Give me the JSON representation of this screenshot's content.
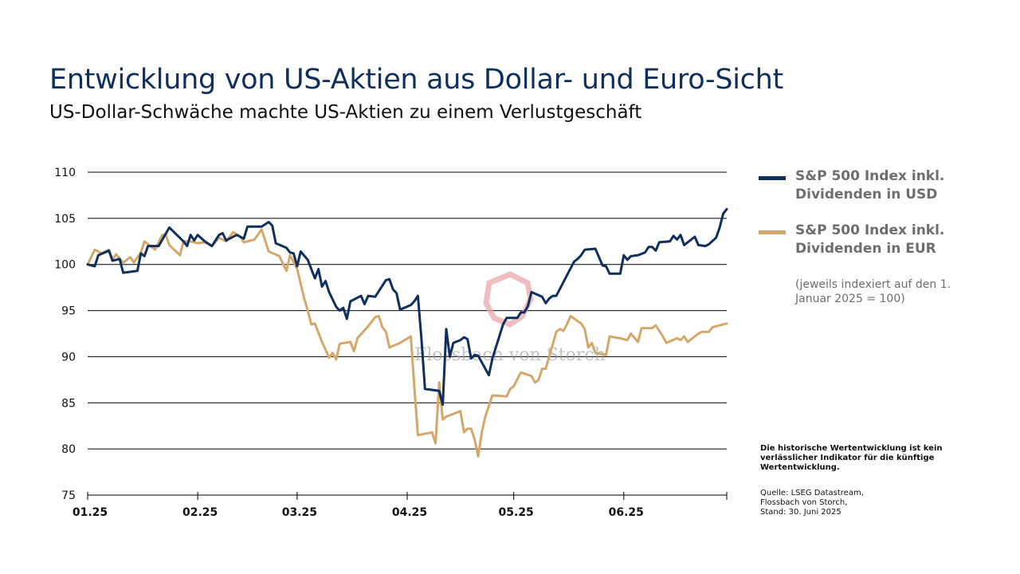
{
  "title": "Entwicklung von US-Aktien aus Dollar- und Euro-Sicht",
  "subtitle": "US-Dollar-Schwäche machte US-Aktien zu einem Verlustgeschäft",
  "legend": {
    "usd_label": "S&P 500 Index inkl. Dividenden in USD",
    "eur_label": "S&P 500 Index inkl. Dividenden in EUR",
    "note": "(jeweils indexiert auf den 1. Januar 2025 = 100)"
  },
  "disclaimer": "Die historische Wertentwicklung ist kein verlässlicher Indikator für die künftige Wertentwicklung.",
  "source": {
    "line1": "Quelle: LSEG Datastream,",
    "line2": "Flossbach von Storch,",
    "line3": "Stand: 30. Juni 2025"
  },
  "watermark": "Flossbach von Storch",
  "colors": {
    "usd": "#0f2f5e",
    "eur": "#d4a76a",
    "title": "#0f2f5e",
    "legend_text": "#6e6e6e",
    "grid": "#000000",
    "watermark_logo": "#e8a8ac"
  },
  "chart_data": {
    "type": "line",
    "x_start": "2025-01-01",
    "x_end": "2025-06-30",
    "ylim": [
      75,
      110
    ],
    "yticks": [
      75,
      80,
      85,
      90,
      95,
      100,
      105,
      110
    ],
    "xticks": [
      {
        "label": "01.25",
        "date": "2025-01-01"
      },
      {
        "label": "02.25",
        "date": "2025-02-01"
      },
      {
        "label": "03.25",
        "date": "2025-03-01"
      },
      {
        "label": "04.25",
        "date": "2025-04-01"
      },
      {
        "label": "05.25",
        "date": "2025-05-01"
      },
      {
        "label": "06.25",
        "date": "2025-06-01"
      }
    ],
    "grid": true,
    "legend_position": "right",
    "series": [
      {
        "name": "S&P 500 Index inkl. Dividenden in USD",
        "color": "#0f2f5e",
        "points": [
          [
            "2025-01-01",
            100.0
          ],
          [
            "2025-01-03",
            99.8
          ],
          [
            "2025-01-04",
            101.0
          ],
          [
            "2025-01-07",
            101.5
          ],
          [
            "2025-01-08",
            100.4
          ],
          [
            "2025-01-10",
            100.6
          ],
          [
            "2025-01-11",
            99.1
          ],
          [
            "2025-01-15",
            99.3
          ],
          [
            "2025-01-16",
            101.2
          ],
          [
            "2025-01-17",
            100.9
          ],
          [
            "2025-01-18",
            102.0
          ],
          [
            "2025-01-21",
            102.0
          ],
          [
            "2025-01-24",
            104.0
          ],
          [
            "2025-01-28",
            102.5
          ],
          [
            "2025-01-29",
            102.0
          ],
          [
            "2025-01-30",
            103.2
          ],
          [
            "2025-01-31",
            102.6
          ],
          [
            "2025-02-01",
            103.2
          ],
          [
            "2025-02-03",
            102.5
          ],
          [
            "2025-02-05",
            102.0
          ],
          [
            "2025-02-07",
            103.2
          ],
          [
            "2025-02-08",
            103.4
          ],
          [
            "2025-02-09",
            102.6
          ],
          [
            "2025-02-12",
            103.2
          ],
          [
            "2025-02-14",
            102.8
          ],
          [
            "2025-02-15",
            104.1
          ],
          [
            "2025-02-19",
            104.1
          ],
          [
            "2025-02-21",
            104.6
          ],
          [
            "2025-02-22",
            104.2
          ],
          [
            "2025-02-23",
            102.3
          ],
          [
            "2025-02-26",
            101.8
          ],
          [
            "2025-02-27",
            101.3
          ],
          [
            "2025-02-28",
            101.2
          ],
          [
            "2025-03-01",
            99.8
          ],
          [
            "2025-03-02",
            101.4
          ],
          [
            "2025-03-04",
            100.5
          ],
          [
            "2025-03-06",
            98.5
          ],
          [
            "2025-03-07",
            99.5
          ],
          [
            "2025-03-08",
            97.6
          ],
          [
            "2025-03-09",
            98.2
          ],
          [
            "2025-03-10",
            97.0
          ],
          [
            "2025-03-12",
            95.4
          ],
          [
            "2025-03-13",
            95.0
          ],
          [
            "2025-03-14",
            95.3
          ],
          [
            "2025-03-15",
            94.1
          ],
          [
            "2025-03-16",
            96.0
          ],
          [
            "2025-03-19",
            96.6
          ],
          [
            "2025-03-20",
            95.7
          ],
          [
            "2025-03-21",
            96.6
          ],
          [
            "2025-03-23",
            96.5
          ],
          [
            "2025-03-26",
            98.3
          ],
          [
            "2025-03-27",
            98.4
          ],
          [
            "2025-03-28",
            97.3
          ],
          [
            "2025-03-29",
            96.9
          ],
          [
            "2025-03-30",
            95.1
          ],
          [
            "2025-04-02",
            95.6
          ],
          [
            "2025-04-03",
            96.0
          ],
          [
            "2025-04-04",
            96.6
          ],
          [
            "2025-04-05",
            92.0
          ],
          [
            "2025-04-06",
            86.5
          ],
          [
            "2025-04-10",
            86.3
          ],
          [
            "2025-04-11",
            84.8
          ],
          [
            "2025-04-12",
            93.0
          ],
          [
            "2025-04-13",
            90.0
          ],
          [
            "2025-04-14",
            91.5
          ],
          [
            "2025-04-16",
            91.8
          ],
          [
            "2025-04-17",
            92.1
          ],
          [
            "2025-04-18",
            91.9
          ],
          [
            "2025-04-19",
            89.8
          ],
          [
            "2025-04-20",
            90.2
          ],
          [
            "2025-04-21",
            90.1
          ],
          [
            "2025-04-24",
            88.0
          ],
          [
            "2025-04-25",
            89.8
          ],
          [
            "2025-04-28",
            93.5
          ],
          [
            "2025-04-29",
            94.2
          ],
          [
            "2025-05-02",
            94.2
          ],
          [
            "2025-05-03",
            94.8
          ],
          [
            "2025-05-04",
            94.8
          ],
          [
            "2025-05-05",
            95.5
          ],
          [
            "2025-05-06",
            97.0
          ],
          [
            "2025-05-09",
            96.5
          ],
          [
            "2025-05-10",
            95.8
          ],
          [
            "2025-05-11",
            96.3
          ],
          [
            "2025-05-12",
            96.6
          ],
          [
            "2025-05-13",
            96.6
          ],
          [
            "2025-05-18",
            100.3
          ],
          [
            "2025-05-19",
            100.6
          ],
          [
            "2025-05-20",
            101.0
          ],
          [
            "2025-05-21",
            101.6
          ],
          [
            "2025-05-24",
            101.7
          ],
          [
            "2025-05-26",
            99.9
          ],
          [
            "2025-05-27",
            99.8
          ],
          [
            "2025-05-28",
            99.0
          ],
          [
            "2025-05-31",
            99.0
          ],
          [
            "2025-06-01",
            101.0
          ],
          [
            "2025-06-02",
            100.5
          ],
          [
            "2025-06-03",
            100.9
          ],
          [
            "2025-06-05",
            101.0
          ],
          [
            "2025-06-07",
            101.3
          ],
          [
            "2025-06-08",
            101.9
          ],
          [
            "2025-06-09",
            101.9
          ],
          [
            "2025-06-10",
            101.5
          ],
          [
            "2025-06-11",
            102.4
          ],
          [
            "2025-06-14",
            102.5
          ],
          [
            "2025-06-15",
            103.1
          ],
          [
            "2025-06-16",
            102.7
          ],
          [
            "2025-06-17",
            103.2
          ],
          [
            "2025-06-18",
            102.1
          ],
          [
            "2025-06-21",
            103.0
          ],
          [
            "2025-06-22",
            102.1
          ],
          [
            "2025-06-24",
            102.0
          ],
          [
            "2025-06-25",
            102.2
          ],
          [
            "2025-06-27",
            102.9
          ],
          [
            "2025-06-28",
            104.0
          ],
          [
            "2025-06-29",
            105.5
          ],
          [
            "2025-06-30",
            106.0
          ]
        ]
      },
      {
        "name": "S&P 500 Index inkl. Dividenden in EUR",
        "color": "#d4a76a",
        "points": [
          [
            "2025-01-01",
            100.0
          ],
          [
            "2025-01-03",
            101.6
          ],
          [
            "2025-01-05",
            101.2
          ],
          [
            "2025-01-07",
            101.6
          ],
          [
            "2025-01-08",
            100.5
          ],
          [
            "2025-01-09",
            101.1
          ],
          [
            "2025-01-11",
            100.2
          ],
          [
            "2025-01-13",
            100.8
          ],
          [
            "2025-01-14",
            100.2
          ],
          [
            "2025-01-16",
            101.3
          ],
          [
            "2025-01-17",
            102.5
          ],
          [
            "2025-01-20",
            101.6
          ],
          [
            "2025-01-22",
            103.2
          ],
          [
            "2025-01-23",
            103.2
          ],
          [
            "2025-01-24",
            102.1
          ],
          [
            "2025-01-27",
            101.0
          ],
          [
            "2025-01-28",
            102.5
          ],
          [
            "2025-01-30",
            102.5
          ],
          [
            "2025-02-01",
            102.3
          ],
          [
            "2025-02-03",
            102.4
          ],
          [
            "2025-02-05",
            102.0
          ],
          [
            "2025-02-07",
            102.9
          ],
          [
            "2025-02-09",
            102.5
          ],
          [
            "2025-02-11",
            103.5
          ],
          [
            "2025-02-13",
            103.0
          ],
          [
            "2025-02-14",
            102.4
          ],
          [
            "2025-02-17",
            102.7
          ],
          [
            "2025-02-19",
            103.8
          ],
          [
            "2025-02-21",
            101.4
          ],
          [
            "2025-02-24",
            100.9
          ],
          [
            "2025-02-26",
            99.3
          ],
          [
            "2025-02-27",
            101.0
          ],
          [
            "2025-03-01",
            99.5
          ],
          [
            "2025-03-03",
            96.3
          ],
          [
            "2025-03-04",
            95.0
          ],
          [
            "2025-03-05",
            93.5
          ],
          [
            "2025-03-06",
            93.6
          ],
          [
            "2025-03-08",
            91.6
          ],
          [
            "2025-03-10",
            89.9
          ],
          [
            "2025-03-11",
            90.4
          ],
          [
            "2025-03-12",
            89.7
          ],
          [
            "2025-03-13",
            91.4
          ],
          [
            "2025-03-16",
            91.6
          ],
          [
            "2025-03-17",
            90.6
          ],
          [
            "2025-03-18",
            92.0
          ],
          [
            "2025-03-21",
            93.3
          ],
          [
            "2025-03-23",
            94.3
          ],
          [
            "2025-03-24",
            94.4
          ],
          [
            "2025-03-25",
            93.2
          ],
          [
            "2025-03-26",
            92.7
          ],
          [
            "2025-03-27",
            91.0
          ],
          [
            "2025-03-30",
            91.5
          ],
          [
            "2025-04-02",
            92.2
          ],
          [
            "2025-04-03",
            86.8
          ],
          [
            "2025-04-04",
            81.5
          ],
          [
            "2025-04-08",
            81.8
          ],
          [
            "2025-04-09",
            80.6
          ],
          [
            "2025-04-10",
            87.2
          ],
          [
            "2025-04-11",
            83.2
          ],
          [
            "2025-04-12",
            83.5
          ],
          [
            "2025-04-16",
            84.1
          ],
          [
            "2025-04-17",
            81.8
          ],
          [
            "2025-04-18",
            82.2
          ],
          [
            "2025-04-19",
            82.2
          ],
          [
            "2025-04-20",
            81.0
          ],
          [
            "2025-04-21",
            79.2
          ],
          [
            "2025-04-22",
            81.8
          ],
          [
            "2025-04-23",
            83.5
          ],
          [
            "2025-04-25",
            85.8
          ],
          [
            "2025-04-29",
            85.7
          ],
          [
            "2025-04-30",
            86.5
          ],
          [
            "2025-05-01",
            86.8
          ],
          [
            "2025-05-03",
            88.3
          ],
          [
            "2025-05-06",
            87.9
          ],
          [
            "2025-05-07",
            87.2
          ],
          [
            "2025-05-08",
            87.5
          ],
          [
            "2025-05-09",
            88.7
          ],
          [
            "2025-05-10",
            88.7
          ],
          [
            "2025-05-13",
            92.7
          ],
          [
            "2025-05-14",
            93.0
          ],
          [
            "2025-05-15",
            92.8
          ],
          [
            "2025-05-16",
            93.5
          ],
          [
            "2025-05-17",
            94.4
          ],
          [
            "2025-05-20",
            93.6
          ],
          [
            "2025-05-21",
            93.0
          ],
          [
            "2025-05-22",
            91.0
          ],
          [
            "2025-05-23",
            91.5
          ],
          [
            "2025-05-24",
            90.4
          ],
          [
            "2025-05-27",
            90.2
          ],
          [
            "2025-05-28",
            92.2
          ],
          [
            "2025-05-31",
            92.0
          ],
          [
            "2025-06-02",
            91.8
          ],
          [
            "2025-06-03",
            92.5
          ],
          [
            "2025-06-05",
            91.6
          ],
          [
            "2025-06-06",
            93.1
          ],
          [
            "2025-06-09",
            93.1
          ],
          [
            "2025-06-10",
            93.4
          ],
          [
            "2025-06-12",
            92.2
          ],
          [
            "2025-06-13",
            91.5
          ],
          [
            "2025-06-16",
            92.0
          ],
          [
            "2025-06-17",
            91.8
          ],
          [
            "2025-06-18",
            92.2
          ],
          [
            "2025-06-19",
            91.6
          ],
          [
            "2025-06-22",
            92.5
          ],
          [
            "2025-06-23",
            92.7
          ],
          [
            "2025-06-25",
            92.7
          ],
          [
            "2025-06-26",
            93.2
          ],
          [
            "2025-06-28",
            93.4
          ],
          [
            "2025-06-30",
            93.6
          ]
        ]
      }
    ]
  }
}
